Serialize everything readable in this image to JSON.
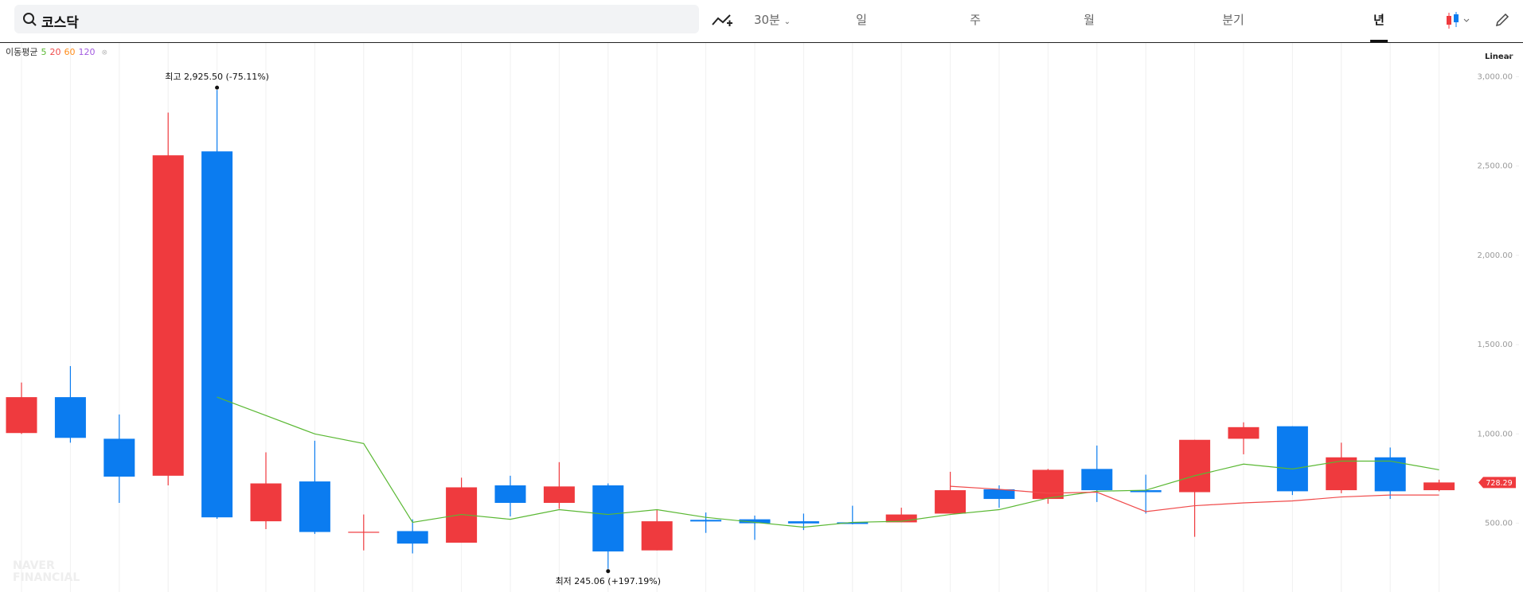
{
  "toolbar": {
    "search": "코스닥",
    "interval": "30분",
    "tabs": [
      "일",
      "주",
      "월",
      "분기",
      "년"
    ],
    "active_tab": 4
  },
  "chart_data": {
    "type": "candlestick",
    "legend_title": "이동평균",
    "scale": "Linear",
    "watermark": [
      "NAVER",
      "FINANCIAL"
    ],
    "annotations": {
      "high": "최고 2,925.50 (-75.11%)",
      "low": "최저 245.06 (+197.19%)"
    },
    "up_color": "#ef3a3e",
    "down_color": "#0b7cf0",
    "categories": [
      null,
      null,
      null,
      null,
      null,
      null,
      null,
      null,
      null,
      null,
      null,
      null,
      null,
      null,
      null,
      null,
      null,
      null,
      null,
      null,
      null,
      null,
      null,
      null,
      null,
      null,
      null,
      null,
      null,
      null
    ],
    "open": [
      1005,
      1206,
      973,
      766,
      2582,
      511,
      734,
      450,
      456,
      391,
      712,
      614,
      712,
      348,
      519,
      522,
      511,
      505,
      505,
      554,
      690,
      636,
      804,
      685,
      674,
      973,
      1043,
      685,
      869,
      685
    ],
    "high": [
      1288,
      1380,
      1109,
      2799,
      2925.5,
      897,
      962,
      549,
      522,
      755,
      766,
      842,
      723,
      576,
      560,
      543,
      554,
      598,
      587,
      788,
      712,
      804,
      935,
      772,
      967,
      1065,
      1043,
      951,
      924,
      744
    ],
    "low": [
      1000,
      951,
      614,
      712,
      525,
      467,
      440,
      348,
      331,
      391,
      538,
      581,
      245.06,
      348,
      446,
      407,
      462,
      494,
      505,
      554,
      587,
      609,
      619,
      554,
      424,
      886,
      658,
      668,
      636,
      679
    ],
    "close": [
      1206,
      978,
      761,
      2560,
      533,
      723,
      451,
      452,
      386,
      701,
      614,
      706,
      342,
      511,
      510,
      500,
      499,
      496,
      549,
      685,
      636,
      799,
      685,
      674,
      967,
      1038,
      679,
      869,
      679,
      728.29
    ],
    "series": [
      {
        "name": "5",
        "color": "#5ab833",
        "values": [
          null,
          null,
          null,
          null,
          1206,
          1103,
          1000,
          946,
          505,
          549,
          522,
          576,
          549,
          576,
          533,
          505,
          478,
          505,
          511,
          549,
          576,
          641,
          679,
          685,
          766,
          831,
          804,
          848,
          848,
          799
        ]
      },
      {
        "name": "20",
        "color": "#f04b4b",
        "values": [
          null,
          null,
          null,
          null,
          null,
          null,
          null,
          null,
          null,
          null,
          null,
          null,
          null,
          null,
          null,
          null,
          null,
          null,
          null,
          707,
          690,
          668,
          674,
          565,
          598,
          614,
          625,
          647,
          658,
          658
        ]
      },
      {
        "name": "60",
        "color": "#ff8c1a",
        "values": [
          null,
          null,
          null,
          null,
          null,
          null,
          null,
          null,
          null,
          null,
          null,
          null,
          null,
          null,
          null,
          null,
          null,
          null,
          null,
          null,
          null,
          null,
          null,
          null,
          null,
          null,
          null,
          null,
          null,
          null
        ]
      },
      {
        "name": "120",
        "color": "#a35be0",
        "values": [
          null,
          null,
          null,
          null,
          null,
          null,
          null,
          null,
          null,
          null,
          null,
          null,
          null,
          null,
          null,
          null,
          null,
          null,
          null,
          null,
          null,
          null,
          null,
          null,
          null,
          null,
          null,
          null,
          null,
          null
        ]
      }
    ],
    "ylim": [
      115,
      3189
    ],
    "yticks": [
      {
        "value": 500,
        "label": "500.00"
      },
      {
        "value": 1000,
        "label": "1,000.00"
      },
      {
        "value": 1500,
        "label": "1,500.00"
      },
      {
        "value": 2000,
        "label": "2,000.00"
      },
      {
        "value": 2500,
        "label": "2,500.00"
      },
      {
        "value": 3000,
        "label": "3,000.00"
      }
    ],
    "grid": true
  }
}
